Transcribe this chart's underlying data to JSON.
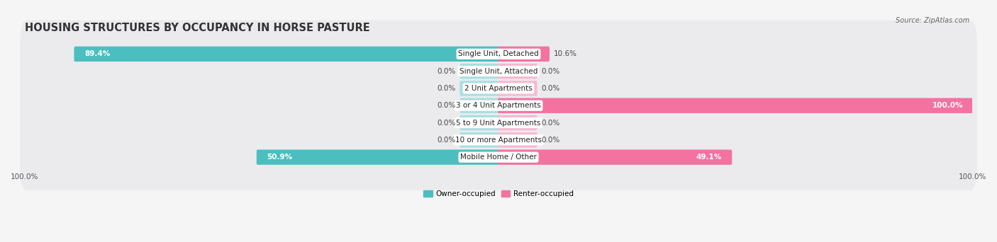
{
  "title": "HOUSING STRUCTURES BY OCCUPANCY IN HORSE PASTURE",
  "source": "Source: ZipAtlas.com",
  "categories": [
    "Single Unit, Detached",
    "Single Unit, Attached",
    "2 Unit Apartments",
    "3 or 4 Unit Apartments",
    "5 to 9 Unit Apartments",
    "10 or more Apartments",
    "Mobile Home / Other"
  ],
  "owner_pct": [
    89.4,
    0.0,
    0.0,
    0.0,
    0.0,
    0.0,
    50.9
  ],
  "renter_pct": [
    10.6,
    0.0,
    0.0,
    100.0,
    0.0,
    0.0,
    49.1
  ],
  "owner_color": "#4bbfc0",
  "owner_color_light": "#a8dfe0",
  "renter_color": "#f472a0",
  "renter_color_light": "#f9b8cf",
  "owner_label": "Owner-occupied",
  "renter_label": "Renter-occupied",
  "row_bg_color": "#ebebee",
  "title_fontsize": 10.5,
  "label_fontsize": 7.5,
  "pct_fontsize": 7.5,
  "source_fontsize": 7,
  "min_stub": 8.0,
  "scale": 100
}
